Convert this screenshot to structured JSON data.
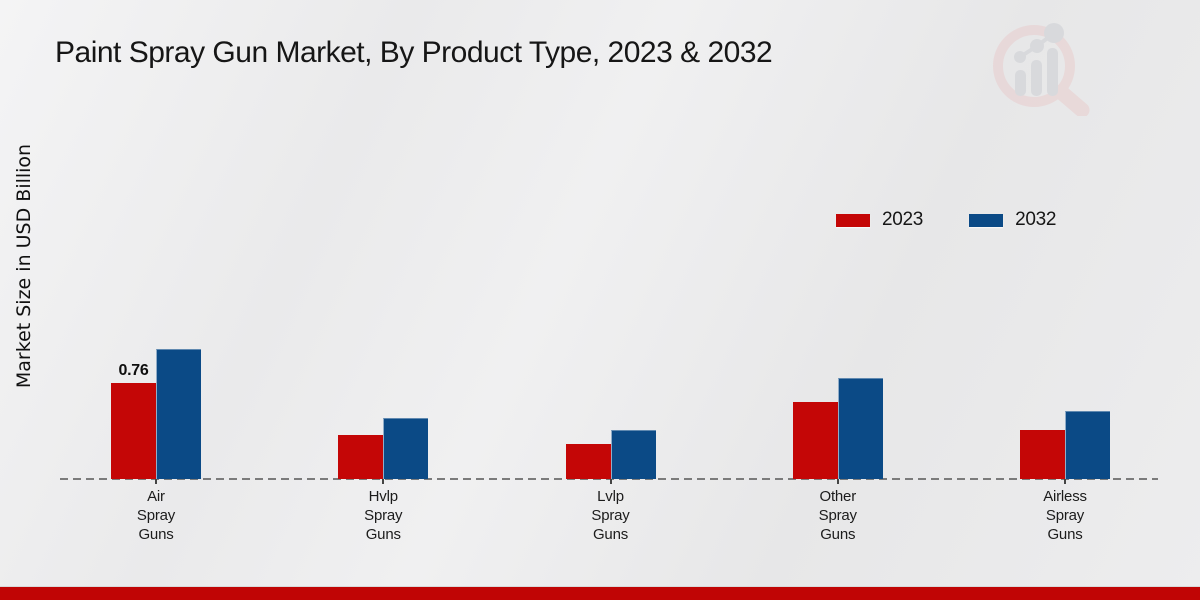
{
  "header": {
    "title": "Paint Spray Gun Market, By Product Type, 2023 & 2032"
  },
  "y_axis": {
    "label": "Market Size in USD Billion"
  },
  "watermark": {
    "name": "market-research-future-logo",
    "lens_color": "#e8cdcd",
    "bars_color": "#ccced3"
  },
  "footer": {
    "bar_color": "#c00505"
  },
  "chart_data": {
    "type": "bar",
    "title": "Paint Spray Gun Market, By Product Type, 2023 & 2032",
    "xlabel": "",
    "ylabel": "Market Size in USD Billion",
    "categories": [
      "Air Spray Guns",
      "Hvlp Spray Guns",
      "Lvlp Spray Guns",
      "Other Spray Guns",
      "Airless Spray Guns"
    ],
    "series": [
      {
        "name": "2023",
        "color": "#c40606",
        "values": [
          0.76,
          0.35,
          0.28,
          0.61,
          0.39
        ]
      },
      {
        "name": "2032",
        "color": "#0b4a86",
        "values": [
          1.03,
          0.48,
          0.39,
          0.8,
          0.54
        ]
      }
    ],
    "data_labels": [
      {
        "series_index": 0,
        "category_index": 0,
        "text": "0.76"
      }
    ],
    "ylim": [
      0,
      1.1
    ],
    "grid": false,
    "legend_position": "upper-right",
    "baseline_style": "dashed",
    "axis_line_color": "#7b7b7b"
  }
}
